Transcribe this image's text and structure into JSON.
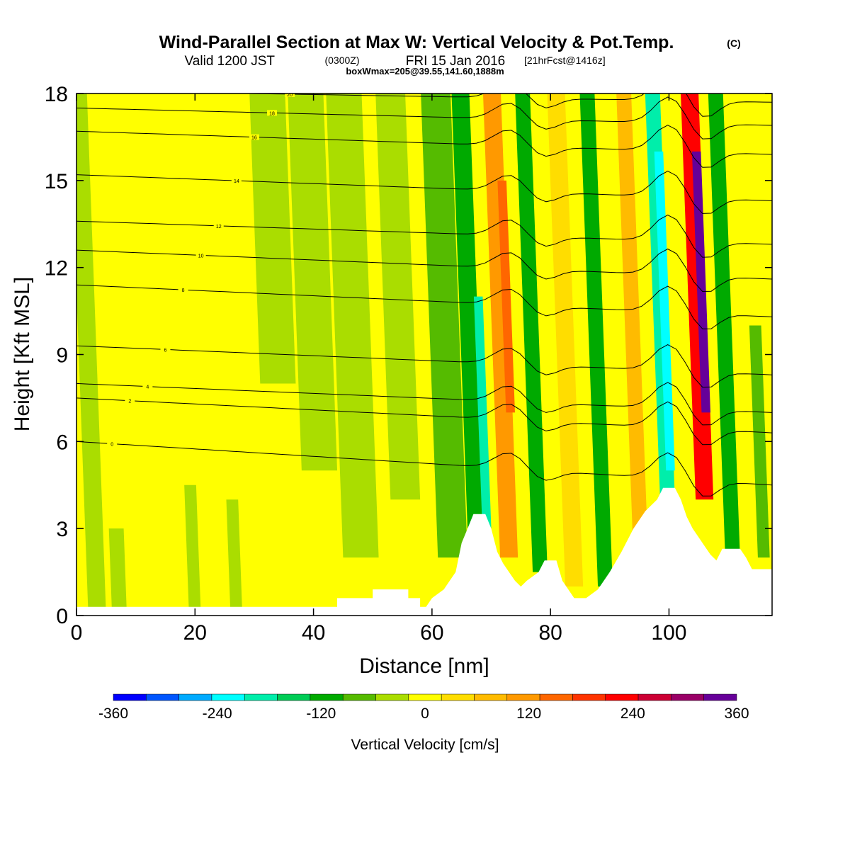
{
  "chart_data": {
    "type": "heatmap",
    "title": "Wind-Parallel Section at Max W: Vertical Velocity & Pot.Temp.",
    "title_mark": "(C)",
    "subtitle": {
      "part1": "Valid 1200 JST",
      "part2": "(0300Z)",
      "part3": "FRI 15 Jan 2016",
      "part4": "[21hrFcst@1416z]"
    },
    "subtitle2": "boxWmax=205@39.55,141.60,1888m",
    "xlabel": "Distance [nm]",
    "ylabel": "Height [Kft MSL]",
    "xlim": [
      0,
      117.4
    ],
    "ylim": [
      0,
      18
    ],
    "xticks": [
      0,
      20,
      40,
      60,
      80,
      100
    ],
    "yticks": [
      0,
      3,
      6,
      9,
      12,
      15,
      18
    ],
    "colorbar": {
      "label": "Vertical Velocity [cm/s]",
      "levels": [
        -360,
        -320,
        -280,
        -240,
        -200,
        -160,
        -120,
        -80,
        -40,
        0,
        40,
        80,
        120,
        160,
        200,
        240,
        280,
        320,
        360
      ],
      "tick_labels": [
        "-360",
        "-240",
        "-120",
        "0",
        "120",
        "240",
        "360"
      ],
      "colors": [
        "#0000ff",
        "#0055ff",
        "#00aaff",
        "#00ffff",
        "#00eeaa",
        "#00cc55",
        "#00aa00",
        "#55bb00",
        "#aadd00",
        "#ffff00",
        "#ffdd00",
        "#ffbb00",
        "#ff9900",
        "#ff6600",
        "#ff3300",
        "#ff0000",
        "#cc0033",
        "#990066",
        "#660099"
      ]
    },
    "vertical_velocity_features": [
      {
        "x": 2,
        "w": 3,
        "y0": 0,
        "y1": 18,
        "value": -40
      },
      {
        "x": 6,
        "w": 2.5,
        "y0": 0,
        "y1": 3,
        "value": -40
      },
      {
        "x": 19,
        "w": 2,
        "y0": 0,
        "y1": 4.5,
        "value": -40
      },
      {
        "x": 26,
        "w": 2,
        "y0": 0,
        "y1": 4,
        "value": -40
      },
      {
        "x": 31,
        "w": 6,
        "y0": 8,
        "y1": 18,
        "value": -40
      },
      {
        "x": 38,
        "w": 6,
        "y0": 5,
        "y1": 18,
        "value": -40
      },
      {
        "x": 45,
        "w": 6,
        "y0": 2,
        "y1": 18,
        "value": -40
      },
      {
        "x": 53,
        "w": 5,
        "y0": 4,
        "y1": 18,
        "value": -40
      },
      {
        "x": 61,
        "w": 5,
        "y0": 2,
        "y1": 18,
        "value": -60
      },
      {
        "x": 66,
        "w": 3,
        "y0": 3,
        "y1": 18,
        "value": -120
      },
      {
        "x": 68.5,
        "w": 1.5,
        "y0": 3,
        "y1": 11,
        "value": -180
      },
      {
        "x": 71.5,
        "w": 3,
        "y0": 2,
        "y1": 18,
        "value": 120
      },
      {
        "x": 72.5,
        "w": 1.5,
        "y0": 7,
        "y1": 15,
        "value": 180
      },
      {
        "x": 77,
        "w": 2.5,
        "y0": 1.5,
        "y1": 18,
        "value": -120
      },
      {
        "x": 82.5,
        "w": 3,
        "y0": 1,
        "y1": 18,
        "value": 50
      },
      {
        "x": 88,
        "w": 2.5,
        "y0": 1,
        "y1": 18,
        "value": -100
      },
      {
        "x": 94,
        "w": 2.5,
        "y0": 2,
        "y1": 18,
        "value": 80
      },
      {
        "x": 98.5,
        "w": 2.5,
        "y0": 4,
        "y1": 18,
        "value": -200
      },
      {
        "x": 99.5,
        "w": 1.5,
        "y0": 5,
        "y1": 16,
        "value": -240
      },
      {
        "x": 104.5,
        "w": 3,
        "y0": 4,
        "y1": 18,
        "value": 240
      },
      {
        "x": 105.5,
        "w": 1.5,
        "y0": 7,
        "y1": 16,
        "value": 360
      },
      {
        "x": 109.5,
        "w": 2.5,
        "y0": 2,
        "y1": 18,
        "value": -100
      },
      {
        "x": 115,
        "w": 2,
        "y0": 2,
        "y1": 10,
        "value": -60
      }
    ],
    "theta_contours": [
      {
        "level": "0",
        "type": "line",
        "y_left": 6.0,
        "y_right": 4.5
      },
      {
        "level": "2",
        "type": "line",
        "y_left": 7.5,
        "y_right": 6.3
      },
      {
        "level": "4",
        "type": "line",
        "y_left": 8.0,
        "y_right": 7.0
      },
      {
        "level": "6",
        "type": "line",
        "y_left": 9.3,
        "y_right": 8.3
      },
      {
        "level": "8",
        "type": "line",
        "y_left": 11.4,
        "y_right": 10.3
      },
      {
        "level": "10",
        "type": "line",
        "y_left": 12.6,
        "y_right": 11.6
      },
      {
        "level": "12",
        "type": "line",
        "y_left": 13.6,
        "y_right": 12.8
      },
      {
        "level": "14",
        "type": "line",
        "y_left": 15.2,
        "y_right": 14.3
      },
      {
        "level": "16",
        "type": "line",
        "y_left": 16.7,
        "y_right": 15.9
      },
      {
        "level": "18",
        "type": "line",
        "y_left": 17.5,
        "y_right": 16.9
      },
      {
        "level": "20",
        "type": "line",
        "y_left": 18.1,
        "y_right": 17.7
      }
    ],
    "terrain": [
      [
        0,
        0.3
      ],
      [
        44,
        0.3
      ],
      [
        44,
        0.6
      ],
      [
        50,
        0.6
      ],
      [
        50,
        0.9
      ],
      [
        56,
        0.9
      ],
      [
        56,
        0.6
      ],
      [
        58,
        0.6
      ],
      [
        58,
        0.3
      ],
      [
        59,
        0.3
      ],
      [
        60,
        0.6
      ],
      [
        62,
        0.9
      ],
      [
        64,
        1.5
      ],
      [
        65,
        2.5
      ],
      [
        66,
        3.0
      ],
      [
        67,
        3.5
      ],
      [
        69,
        3.5
      ],
      [
        70,
        3.0
      ],
      [
        71,
        2.2
      ],
      [
        72,
        1.8
      ],
      [
        73,
        1.5
      ],
      [
        74,
        1.2
      ],
      [
        75,
        1.0
      ],
      [
        76,
        1.2
      ],
      [
        78,
        1.5
      ],
      [
        79,
        1.9
      ],
      [
        81,
        1.9
      ],
      [
        82,
        1.2
      ],
      [
        83,
        0.9
      ],
      [
        84,
        0.6
      ],
      [
        86,
        0.6
      ],
      [
        88,
        0.9
      ],
      [
        90,
        1.5
      ],
      [
        92,
        2.2
      ],
      [
        94,
        3.0
      ],
      [
        96,
        3.6
      ],
      [
        98,
        4.0
      ],
      [
        99,
        4.4
      ],
      [
        101,
        4.4
      ],
      [
        102,
        4.0
      ],
      [
        103,
        3.4
      ],
      [
        104,
        3.0
      ],
      [
        105,
        2.7
      ],
      [
        106,
        2.4
      ],
      [
        107,
        2.1
      ],
      [
        108,
        1.9
      ],
      [
        109,
        2.3
      ],
      [
        112,
        2.3
      ],
      [
        113,
        2.0
      ],
      [
        114,
        1.6
      ],
      [
        117.4,
        1.6
      ],
      [
        117.4,
        0
      ],
      [
        0,
        0
      ]
    ]
  }
}
